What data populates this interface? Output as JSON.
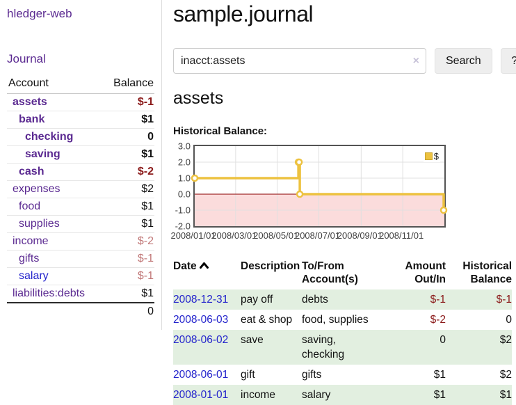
{
  "colors": {
    "link_purple": "#5b2a91",
    "link_blue": "#2323cc",
    "negative_strong": "#8b1a1a",
    "negative_muted": "#c17878",
    "row_stripe_green": "#e2efe0",
    "chart_line_gold": "#edc240",
    "chart_negative_fill": "#fbdcdc",
    "chart_zero_line": "#8b0000",
    "chart_border": "#545454",
    "chart_grid": "#e0e0e0",
    "border_light": "#dddddd",
    "button_bg": "#eeeeee"
  },
  "sidebar": {
    "app_title": "hledger-web",
    "nav": {
      "journal_link": "Journal"
    },
    "accounts_table": {
      "headers": {
        "account": "Account",
        "balance": "Balance"
      },
      "rows": [
        {
          "name": "assets",
          "balance": "$-1",
          "indent": 1,
          "bold": true,
          "link": "purple",
          "negative": "strong"
        },
        {
          "name": "bank",
          "balance": "$1",
          "indent": 2,
          "bold": true,
          "link": "purple",
          "negative": null
        },
        {
          "name": "checking",
          "balance": "0",
          "indent": 3,
          "bold": true,
          "link": "purple",
          "negative": null
        },
        {
          "name": "saving",
          "balance": "$1",
          "indent": 3,
          "bold": true,
          "link": "purple",
          "negative": null
        },
        {
          "name": "cash",
          "balance": "$-2",
          "indent": 2,
          "bold": true,
          "link": "purple",
          "negative": "strong"
        },
        {
          "name": "expenses",
          "balance": "$2",
          "indent": 1,
          "bold": false,
          "link": "purple",
          "negative": null
        },
        {
          "name": "food",
          "balance": "$1",
          "indent": 2,
          "bold": false,
          "link": "purple",
          "negative": null
        },
        {
          "name": "supplies",
          "balance": "$1",
          "indent": 2,
          "bold": false,
          "link": "purple",
          "negative": null
        },
        {
          "name": "income",
          "balance": "$-2",
          "indent": 1,
          "bold": false,
          "link": "purple",
          "negative": "muted"
        },
        {
          "name": "gifts",
          "balance": "$-1",
          "indent": 2,
          "bold": false,
          "link": "purple",
          "negative": "muted"
        },
        {
          "name": "salary",
          "balance": "$-1",
          "indent": 2,
          "bold": false,
          "link": "blue",
          "negative": "muted"
        },
        {
          "name": "liabilities:debts",
          "balance": "$1",
          "indent": 1,
          "bold": false,
          "link": "purple",
          "negative": null
        }
      ],
      "total": "0"
    }
  },
  "main": {
    "title": "sample.journal",
    "search": {
      "query": "inacct:assets",
      "clear_icon": "×",
      "search_button": "Search",
      "help_button": "?"
    },
    "account_heading": "assets",
    "chart_label": "Historical Balance:",
    "register_table": {
      "headers": {
        "date": "Date",
        "description": "Description",
        "accounts_line1": "To/From",
        "accounts_line2": "Account(s)",
        "amount_line1": "Amount",
        "amount_line2": "Out/In",
        "balance_line1": "Historical",
        "balance_line2": "Balance"
      },
      "rows": [
        {
          "date": "2008-12-31",
          "description": "pay off",
          "accounts": "debts",
          "amount": "$-1",
          "amount_negative": true,
          "balance": "$-1",
          "balance_negative": true,
          "striped": true
        },
        {
          "date": "2008-06-03",
          "description": "eat & shop",
          "accounts": "food, supplies",
          "amount": "$-2",
          "amount_negative": true,
          "balance": "0",
          "balance_negative": false,
          "striped": false
        },
        {
          "date": "2008-06-02",
          "description": "save",
          "accounts": "saving, checking",
          "amount": "0",
          "amount_negative": false,
          "balance": "$2",
          "balance_negative": false,
          "striped": true
        },
        {
          "date": "2008-06-01",
          "description": "gift",
          "accounts": "gifts",
          "amount": "$1",
          "amount_negative": false,
          "balance": "$2",
          "balance_negative": false,
          "striped": false
        },
        {
          "date": "2008-01-01",
          "description": "income",
          "accounts": "salary",
          "amount": "$1",
          "amount_negative": false,
          "balance": "$1",
          "balance_negative": false,
          "striped": true
        }
      ]
    }
  },
  "chart_data": {
    "type": "line",
    "title": "Historical Balance",
    "step": true,
    "series": [
      {
        "name": "$",
        "color": "#edc240",
        "points": [
          [
            "2008-01-01",
            1
          ],
          [
            "2008-06-01",
            2
          ],
          [
            "2008-06-02",
            2
          ],
          [
            "2008-06-03",
            0
          ],
          [
            "2008-12-31",
            -1
          ]
        ]
      }
    ],
    "xlim": [
      "2008-01-01",
      "2009-01-01"
    ],
    "ylim": [
      -2,
      3
    ],
    "x_ticks": [
      {
        "date": "2008-01-01",
        "label": "2008/01/01"
      },
      {
        "date": "2008-03-01",
        "label": "2008/03/01"
      },
      {
        "date": "2008-05-01",
        "label": "2008/05/01"
      },
      {
        "date": "2008-07-01",
        "label": "2008/07/01"
      },
      {
        "date": "2008-09-01",
        "label": "2008/09/01"
      },
      {
        "date": "2008-11-01",
        "label": "2008/11/01"
      }
    ],
    "y_ticks": [
      {
        "v": 3,
        "label": "3.0"
      },
      {
        "v": 2,
        "label": "2.0"
      },
      {
        "v": 1,
        "label": "1.0"
      },
      {
        "v": 0,
        "label": "0.0"
      },
      {
        "v": -1,
        "label": "-1.0"
      },
      {
        "v": -2,
        "label": "-2.0"
      }
    ],
    "legend": {
      "label": "$",
      "position": "top-right"
    },
    "grid": true,
    "negative_region_fill": true
  }
}
